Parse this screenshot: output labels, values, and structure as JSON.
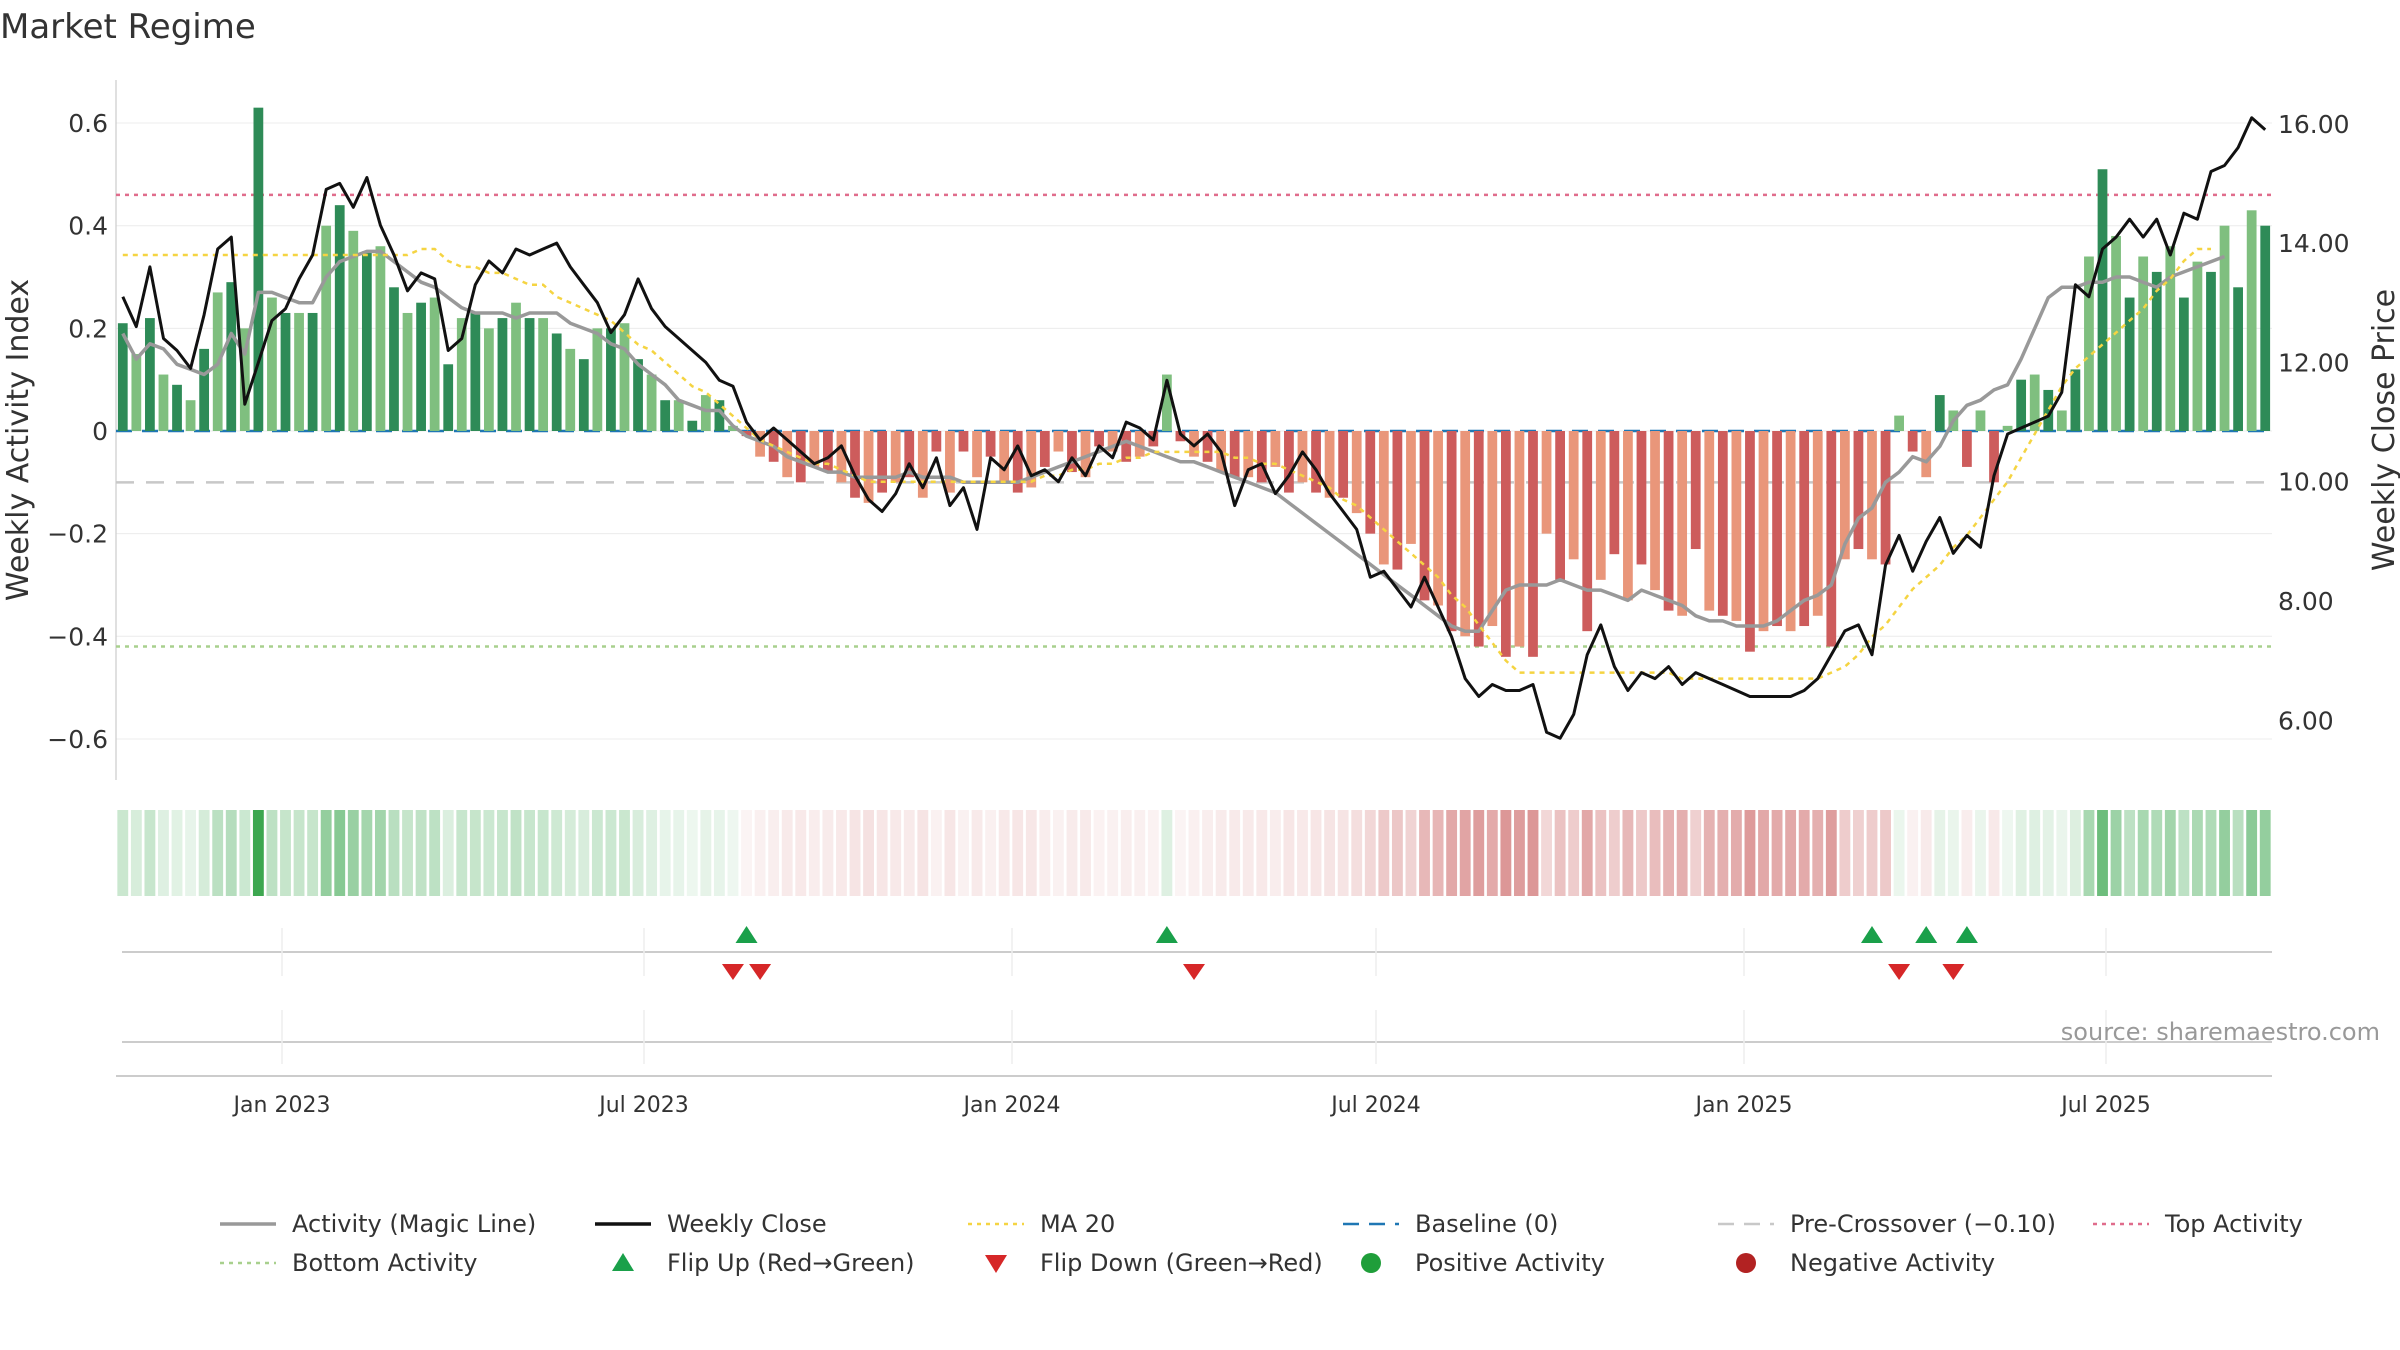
{
  "title": "Market Regime",
  "source": "source: sharemaestro.com",
  "colors": {
    "pos_dark": "#2e8b57",
    "pos_light": "#7fbf7f",
    "neg_dark": "#cd5c5c",
    "neg_light": "#e9967a",
    "magic": "#999999",
    "close": "#111111",
    "ma20": "#f5d442",
    "baseline": "#1f77b4",
    "precross": "#c8c8c8",
    "top": "#e06c8c",
    "bottom": "#a8d08d",
    "flip_up": "#1aa04a",
    "flip_down": "#d62728",
    "pos_dot": "#1f9e3a",
    "neg_dot": "#b22222"
  },
  "chart_data": {
    "type": "bar",
    "title": "Market Regime",
    "ylabel": "Weekly Activity Index",
    "y2label": "Weekly Close Price",
    "ylim": [
      -0.68,
      0.68
    ],
    "y2lim": [
      5.0,
      16.7
    ],
    "yticks": [
      "0.6",
      "0.4",
      "0.2",
      "0",
      "−0.2",
      "−0.4",
      "−0.6"
    ],
    "yticks_values": [
      0.6,
      0.4,
      0.2,
      0,
      -0.2,
      -0.4,
      -0.6
    ],
    "y2ticks": [
      "16.00",
      "14.00",
      "12.00",
      "10.00",
      "8.00",
      "6.00"
    ],
    "y2ticks_values": [
      16,
      14,
      12,
      10,
      8,
      6
    ],
    "x_start": "2022-10-10",
    "x_end": "2025-09-22",
    "xtick_labels": [
      "Jan 2023",
      "Jul 2023",
      "Jan 2024",
      "Jul 2024",
      "Jan 2025",
      "Jul 2025"
    ],
    "xtick_dates": [
      "2023-01-01",
      "2023-07-01",
      "2024-01-01",
      "2024-07-01",
      "2025-01-01",
      "2025-07-01"
    ],
    "lines": {
      "top_activity": 0.46,
      "bottom_activity": -0.42,
      "pre_crossover": -0.1,
      "baseline": 0
    },
    "activity": [
      0.21,
      0.15,
      0.22,
      0.11,
      0.09,
      0.06,
      0.16,
      0.27,
      0.29,
      0.2,
      0.63,
      0.26,
      0.23,
      0.23,
      0.23,
      0.4,
      0.44,
      0.39,
      0.35,
      0.36,
      0.28,
      0.23,
      0.25,
      0.26,
      0.13,
      0.22,
      0.23,
      0.2,
      0.22,
      0.25,
      0.22,
      0.22,
      0.19,
      0.16,
      0.14,
      0.2,
      0.2,
      0.21,
      0.14,
      0.11,
      0.06,
      0.06,
      0.02,
      0.07,
      0.06,
      0.01,
      -0.01,
      -0.05,
      -0.06,
      -0.09,
      -0.1,
      -0.07,
      -0.08,
      -0.1,
      -0.13,
      -0.14,
      -0.12,
      -0.1,
      -0.09,
      -0.13,
      -0.04,
      -0.12,
      -0.04,
      -0.09,
      -0.05,
      -0.1,
      -0.12,
      -0.11,
      -0.07,
      -0.04,
      -0.08,
      -0.09,
      -0.03,
      -0.04,
      -0.06,
      -0.05,
      -0.03,
      0.11,
      -0.02,
      -0.05,
      -0.06,
      -0.08,
      -0.09,
      -0.09,
      -0.1,
      -0.07,
      -0.12,
      -0.1,
      -0.12,
      -0.13,
      -0.13,
      -0.16,
      -0.2,
      -0.26,
      -0.27,
      -0.22,
      -0.33,
      -0.34,
      -0.39,
      -0.4,
      -0.42,
      -0.38,
      -0.44,
      -0.42,
      -0.44,
      -0.2,
      -0.29,
      -0.25,
      -0.39,
      -0.29,
      -0.24,
      -0.33,
      -0.26,
      -0.31,
      -0.35,
      -0.36,
      -0.23,
      -0.35,
      -0.36,
      -0.37,
      -0.43,
      -0.39,
      -0.38,
      -0.39,
      -0.38,
      -0.36,
      -0.42,
      -0.25,
      -0.23,
      -0.25,
      -0.26,
      0.03,
      -0.04,
      -0.09,
      0.07,
      0.04,
      -0.07,
      0.04,
      -0.1,
      0.01,
      0.1,
      0.11,
      0.08,
      0.04,
      0.12,
      0.34,
      0.51,
      0.38,
      0.26,
      0.34,
      0.31,
      0.36,
      0.26,
      0.33,
      0.31,
      0.4,
      0.28,
      0.43,
      0.4
    ],
    "magic_line": [
      0.19,
      0.14,
      0.17,
      0.16,
      0.13,
      0.12,
      0.11,
      0.13,
      0.19,
      0.15,
      0.27,
      0.27,
      0.26,
      0.25,
      0.25,
      0.3,
      0.33,
      0.34,
      0.35,
      0.35,
      0.33,
      0.31,
      0.29,
      0.28,
      0.26,
      0.24,
      0.23,
      0.23,
      0.23,
      0.22,
      0.23,
      0.23,
      0.23,
      0.21,
      0.2,
      0.19,
      0.17,
      0.16,
      0.13,
      0.11,
      0.09,
      0.06,
      0.05,
      0.04,
      0.04,
      0.01,
      -0.01,
      -0.02,
      -0.03,
      -0.05,
      -0.06,
      -0.07,
      -0.08,
      -0.08,
      -0.09,
      -0.09,
      -0.09,
      -0.09,
      -0.08,
      -0.09,
      -0.09,
      -0.09,
      -0.1,
      -0.1,
      -0.1,
      -0.1,
      -0.1,
      -0.09,
      -0.08,
      -0.07,
      -0.06,
      -0.05,
      -0.04,
      -0.03,
      -0.02,
      -0.03,
      -0.04,
      -0.05,
      -0.06,
      -0.06,
      -0.07,
      -0.08,
      -0.09,
      -0.1,
      -0.11,
      -0.12,
      -0.14,
      -0.16,
      -0.18,
      -0.2,
      -0.22,
      -0.24,
      -0.26,
      -0.28,
      -0.3,
      -0.32,
      -0.34,
      -0.36,
      -0.38,
      -0.39,
      -0.39,
      -0.35,
      -0.31,
      -0.3,
      -0.3,
      -0.3,
      -0.29,
      -0.3,
      -0.31,
      -0.31,
      -0.32,
      -0.33,
      -0.31,
      -0.32,
      -0.33,
      -0.34,
      -0.36,
      -0.37,
      -0.37,
      -0.38,
      -0.38,
      -0.38,
      -0.37,
      -0.35,
      -0.33,
      -0.32,
      -0.3,
      -0.22,
      -0.17,
      -0.15,
      -0.1,
      -0.08,
      -0.05,
      -0.06,
      -0.03,
      0.02,
      0.05,
      0.06,
      0.08,
      0.09,
      0.14,
      0.2,
      0.26,
      0.28,
      0.28,
      0.29,
      0.29,
      0.3,
      0.3,
      0.29,
      0.28,
      0.3,
      0.31,
      0.32,
      0.33,
      0.34
    ],
    "weekly_close": [
      13.1,
      12.6,
      13.6,
      12.4,
      12.2,
      11.9,
      12.8,
      13.9,
      14.1,
      11.3,
      12.0,
      12.7,
      12.9,
      13.4,
      13.8,
      14.9,
      15.0,
      14.6,
      15.1,
      14.3,
      13.8,
      13.2,
      13.5,
      13.4,
      12.2,
      12.4,
      13.3,
      13.7,
      13.5,
      13.9,
      13.8,
      13.9,
      14.0,
      13.6,
      13.3,
      13.0,
      12.5,
      12.8,
      13.4,
      12.9,
      12.6,
      12.4,
      12.2,
      12.0,
      11.7,
      11.6,
      11.0,
      10.7,
      10.9,
      10.7,
      10.5,
      10.3,
      10.4,
      10.6,
      10.1,
      9.7,
      9.5,
      9.8,
      10.3,
      9.9,
      10.4,
      9.6,
      9.9,
      9.2,
      10.4,
      10.2,
      10.6,
      10.1,
      10.2,
      10.0,
      10.4,
      10.1,
      10.6,
      10.4,
      11.0,
      10.9,
      10.7,
      11.7,
      10.8,
      10.6,
      10.8,
      10.5,
      9.6,
      10.2,
      10.3,
      9.8,
      10.1,
      10.5,
      10.2,
      9.8,
      9.5,
      9.2,
      8.4,
      8.5,
      8.2,
      7.9,
      8.4,
      7.9,
      7.4,
      6.7,
      6.4,
      6.6,
      6.5,
      6.5,
      6.6,
      5.8,
      5.7,
      6.1,
      7.1,
      7.6,
      6.9,
      6.5,
      6.8,
      6.7,
      6.9,
      6.6,
      6.8,
      6.7,
      6.6,
      6.5,
      6.4,
      6.4,
      6.4,
      6.4,
      6.5,
      6.7,
      7.1,
      7.5,
      7.6,
      7.1,
      8.6,
      9.1,
      8.5,
      9.0,
      9.4,
      8.8,
      9.1,
      8.9,
      10.1,
      10.8,
      10.9,
      11.0,
      11.1,
      11.5,
      13.3,
      13.1,
      13.9,
      14.1,
      14.4,
      14.1,
      14.4,
      13.8,
      14.5,
      14.4,
      15.2,
      15.3,
      15.6,
      16.1,
      15.9
    ],
    "ma20": [
      13.8,
      13.8,
      13.8,
      13.8,
      13.8,
      13.8,
      13.8,
      13.8,
      13.8,
      13.8,
      13.8,
      13.8,
      13.8,
      13.8,
      13.8,
      13.8,
      13.8,
      13.8,
      13.8,
      13.8,
      13.8,
      13.8,
      13.9,
      13.9,
      13.7,
      13.6,
      13.6,
      13.5,
      13.5,
      13.4,
      13.3,
      13.3,
      13.1,
      13.0,
      12.9,
      12.8,
      12.7,
      12.5,
      12.3,
      12.2,
      12.0,
      11.8,
      11.6,
      11.5,
      11.3,
      11.1,
      10.9,
      10.7,
      10.6,
      10.5,
      10.4,
      10.3,
      10.3,
      10.2,
      10.1,
      10.0,
      10.0,
      10.0,
      10.0,
      10.0,
      10.0,
      10.0,
      10.0,
      10.0,
      10.0,
      10.0,
      10.0,
      10.0,
      10.1,
      10.1,
      10.2,
      10.2,
      10.3,
      10.3,
      10.4,
      10.4,
      10.5,
      10.5,
      10.5,
      10.5,
      10.5,
      10.5,
      10.4,
      10.4,
      10.3,
      10.3,
      10.2,
      10.1,
      10.0,
      9.9,
      9.7,
      9.6,
      9.4,
      9.2,
      9.0,
      8.8,
      8.6,
      8.4,
      8.1,
      7.9,
      7.6,
      7.3,
      7.0,
      6.8,
      6.8,
      6.8,
      6.8,
      6.8,
      6.8,
      6.8,
      6.8,
      6.8,
      6.8,
      6.8,
      6.8,
      6.7,
      6.7,
      6.7,
      6.7,
      6.7,
      6.7,
      6.7,
      6.7,
      6.7,
      6.7,
      6.7,
      6.8,
      6.9,
      7.1,
      7.4,
      7.6,
      7.9,
      8.2,
      8.4,
      8.6,
      8.9,
      9.1,
      9.4,
      9.7,
      10.0,
      10.4,
      10.8,
      11.2,
      11.6,
      11.9,
      12.1,
      12.3,
      12.5,
      12.7,
      12.9,
      13.2,
      13.4,
      13.7,
      13.9,
      13.9
    ],
    "flip_up_idx": [
      46,
      77,
      129,
      133,
      136
    ],
    "flip_down_idx": [
      45,
      47,
      79,
      131,
      135
    ],
    "legend": [
      {
        "label": "Activity (Magic Line)",
        "kind": "solid",
        "color_key": "magic"
      },
      {
        "label": "Weekly Close",
        "kind": "solid",
        "color_key": "close"
      },
      {
        "label": "MA 20",
        "kind": "dotted",
        "color_key": "ma20"
      },
      {
        "label": "Baseline (0)",
        "kind": "dashed",
        "color_key": "baseline"
      },
      {
        "label": "Pre-Crossover (−0.10)",
        "kind": "dashed",
        "color_key": "precross"
      },
      {
        "label": "Top Activity",
        "kind": "dotted",
        "color_key": "top"
      },
      {
        "label": "Bottom Activity",
        "kind": "dotted",
        "color_key": "bottom"
      },
      {
        "label": "Flip Up (Red→Green)",
        "kind": "tri-up",
        "color_key": "flip_up"
      },
      {
        "label": "Flip Down (Green→Red)",
        "kind": "tri-down",
        "color_key": "flip_down"
      },
      {
        "label": "Positive Activity",
        "kind": "dot",
        "color_key": "pos_dot"
      },
      {
        "label": "Negative Activity",
        "kind": "dot",
        "color_key": "neg_dot"
      }
    ]
  }
}
